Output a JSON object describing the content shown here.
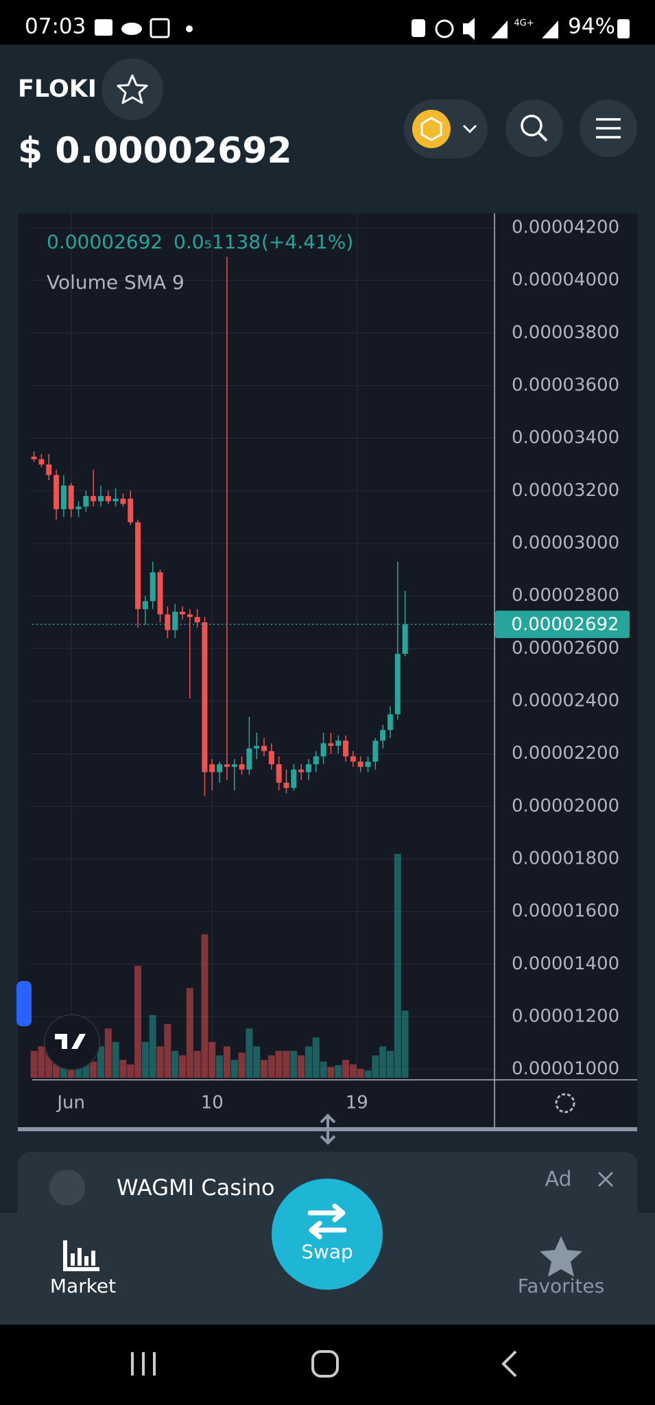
{
  "status_bar": {
    "time": "07:03",
    "network": "4G+",
    "battery": "94%"
  },
  "header": {
    "symbol": "FLOKI",
    "price": "$ 0.00002692"
  },
  "chart_data": {
    "type": "candlestick",
    "legend": {
      "price": "0.00002692",
      "change": "0.0₅1138",
      "change_pct": "(+4.41%)",
      "indicator": "Volume SMA 9"
    },
    "open": [
      3.33e-05,
      3.32e-05,
      3.3e-05,
      3.26e-05,
      3.13e-05,
      3.22e-05,
      3.13e-05,
      3.14e-05,
      3.18e-05,
      3.16e-05,
      3.18e-05,
      3.16e-05,
      3.17e-05,
      3.17e-05,
      3.08e-05,
      2.75e-05,
      2.78e-05,
      2.89e-05,
      2.73e-05,
      2.67e-05,
      2.74e-05,
      2.73e-05,
      2.72e-05,
      2.7e-05,
      2.16e-05,
      2.13e-05,
      2.16e-05,
      2.15e-05,
      2.16e-05,
      2.14e-05,
      2.22e-05,
      2.23e-05,
      2.21e-05,
      2.16e-05,
      2.09e-05,
      2.07e-05,
      2.14e-05,
      2.13e-05,
      2.16e-05,
      2.19e-05,
      2.24e-05,
      2.23e-05,
      2.25e-05,
      2.19e-05,
      2.17e-05,
      2.15e-05,
      2.17e-05,
      2.25e-05,
      2.29e-05,
      2.35e-05,
      2.58e-05
    ],
    "high": [
      3.35e-05,
      3.34e-05,
      3.34e-05,
      3.28e-05,
      3.26e-05,
      3.23e-05,
      3.16e-05,
      3.2e-05,
      3.28e-05,
      3.22e-05,
      3.2e-05,
      3.21e-05,
      3.19e-05,
      3.2e-05,
      3.09e-05,
      2.8e-05,
      2.93e-05,
      2.9e-05,
      2.76e-05,
      2.77e-05,
      2.76e-05,
      2.75e-05,
      2.75e-05,
      2.72e-05,
      2.18e-05,
      2.17e-05,
      4.09e-05,
      2.18e-05,
      2.19e-05,
      2.34e-05,
      2.28e-05,
      2.26e-05,
      2.24e-05,
      2.19e-05,
      2.14e-05,
      2.16e-05,
      2.16e-05,
      2.18e-05,
      2.21e-05,
      2.28e-05,
      2.28e-05,
      2.27e-05,
      2.27e-05,
      2.21e-05,
      2.19e-05,
      2.19e-05,
      2.26e-05,
      2.31e-05,
      2.38e-05,
      2.93e-05,
      2.82e-05
    ],
    "low": [
      3.31e-05,
      3.29e-05,
      3.24e-05,
      3.09e-05,
      3.1e-05,
      3.1e-05,
      3.1e-05,
      3.12e-05,
      3.14e-05,
      3.14e-05,
      3.15e-05,
      3.14e-05,
      3.14e-05,
      3.07e-05,
      2.68e-05,
      2.69e-05,
      2.75e-05,
      2.7e-05,
      2.64e-05,
      2.64e-05,
      2.71e-05,
      2.41e-05,
      2.68e-05,
      2.04e-05,
      2.06e-05,
      2.09e-05,
      2.1e-05,
      2.06e-05,
      2.12e-05,
      2.12e-05,
      2.18e-05,
      2.19e-05,
      2.14e-05,
      2.06e-05,
      2.05e-05,
      2.06e-05,
      2.1e-05,
      2.1e-05,
      2.13e-05,
      2.16e-05,
      2.2e-05,
      2.2e-05,
      2.17e-05,
      2.15e-05,
      2.13e-05,
      2.13e-05,
      2.14e-05,
      2.22e-05,
      2.26e-05,
      2.33e-05,
      2.57e-05
    ],
    "close": [
      3.32e-05,
      3.3e-05,
      3.26e-05,
      3.13e-05,
      3.22e-05,
      3.13e-05,
      3.14e-05,
      3.18e-05,
      3.16e-05,
      3.18e-05,
      3.16e-05,
      3.17e-05,
      3.15e-05,
      3.08e-05,
      2.75e-05,
      2.78e-05,
      2.89e-05,
      2.73e-05,
      2.67e-05,
      2.74e-05,
      2.73e-05,
      2.72e-05,
      2.7e-05,
      2.13e-05,
      2.13e-05,
      2.16e-05,
      2.15e-05,
      2.16e-05,
      2.14e-05,
      2.22e-05,
      2.23e-05,
      2.21e-05,
      2.16e-05,
      2.09e-05,
      2.07e-05,
      2.14e-05,
      2.13e-05,
      2.16e-05,
      2.19e-05,
      2.24e-05,
      2.23e-05,
      2.25e-05,
      2.19e-05,
      2.17e-05,
      2.15e-05,
      2.17e-05,
      2.25e-05,
      2.29e-05,
      2.35e-05,
      2.58e-05,
      2.692e-05
    ],
    "volume": [
      30,
      35,
      32,
      28,
      40,
      22,
      25,
      30,
      18,
      35,
      55,
      40,
      20,
      15,
      125,
      40,
      70,
      35,
      60,
      30,
      25,
      100,
      30,
      160,
      40,
      25,
      35,
      20,
      28,
      55,
      35,
      20,
      25,
      30,
      30,
      30,
      25,
      35,
      45,
      18,
      12,
      14,
      20,
      15,
      10,
      8,
      25,
      35,
      30,
      250,
      75
    ],
    "up_color": "#26a69a",
    "down_color": "#ef5350",
    "xlim": [
      0,
      50
    ],
    "xticks": [
      {
        "value": 5,
        "label": "Jun"
      },
      {
        "value": 24,
        "label": "10"
      },
      {
        "value": 43.5,
        "label": "19"
      }
    ],
    "ylim": [
      9.6e-06,
      4.255e-05
    ],
    "yticks": [
      {
        "value": 4.2e-05,
        "label": "0.00004200"
      },
      {
        "value": 4e-05,
        "label": "0.00004000"
      },
      {
        "value": 3.8e-05,
        "label": "0.00003800"
      },
      {
        "value": 3.6e-05,
        "label": "0.00003600"
      },
      {
        "value": 3.4e-05,
        "label": "0.00003400"
      },
      {
        "value": 3.2e-05,
        "label": "0.00003200"
      },
      {
        "value": 3e-05,
        "label": "0.00003000"
      },
      {
        "value": 2.8e-05,
        "label": "0.00002800"
      },
      {
        "value": 2.6e-05,
        "label": "0.00002600"
      },
      {
        "value": 2.4e-05,
        "label": "0.00002400"
      },
      {
        "value": 2.2e-05,
        "label": "0.00002200"
      },
      {
        "value": 2e-05,
        "label": "0.00002000"
      },
      {
        "value": 1.8e-05,
        "label": "0.00001800"
      },
      {
        "value": 1.6e-05,
        "label": "0.00001600"
      },
      {
        "value": 1.4e-05,
        "label": "0.00001400"
      },
      {
        "value": 1.2e-05,
        "label": "0.00001200"
      },
      {
        "value": 1e-05,
        "label": "0.00001000"
      }
    ],
    "grid": true,
    "last_price": 2.692e-05,
    "last_price_label": "0.00002692"
  },
  "ad": {
    "title": "WAGMI Casino",
    "label": "Ad"
  },
  "nav": {
    "market": "Market",
    "swap": "Swap",
    "favorites": "Favorites"
  }
}
